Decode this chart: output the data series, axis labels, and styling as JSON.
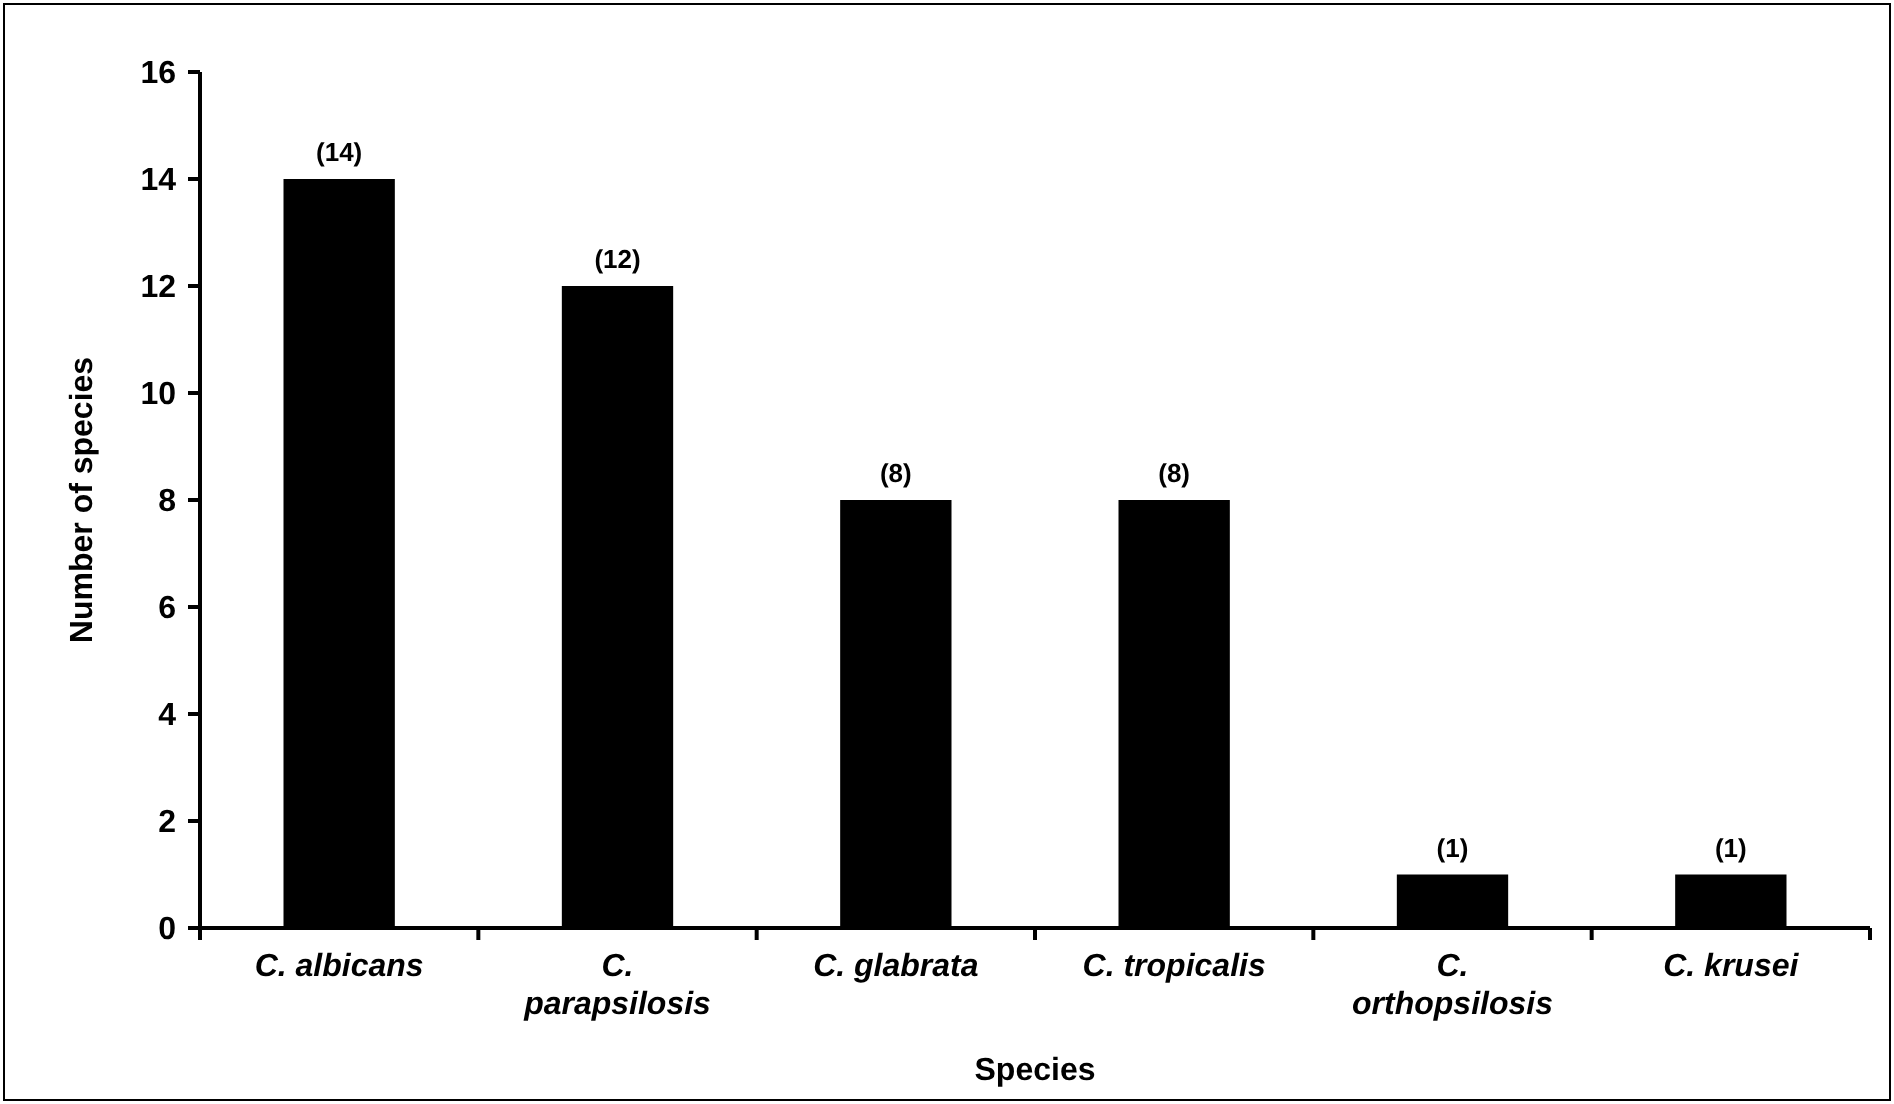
{
  "chart_data": {
    "type": "bar",
    "categories": [
      "C. albicans",
      "C. parapsilosis",
      "C. glabrata",
      "C. tropicalis",
      "C. orthopsilosis",
      "C. krusei"
    ],
    "values": [
      14,
      12,
      8,
      8,
      1,
      1
    ],
    "value_labels": [
      "(14)",
      "(12)",
      "(8)",
      "(8)",
      "(1)",
      "(1)"
    ],
    "color": "#000000",
    "xlabel": "Species",
    "ylabel": "Number of species",
    "ylim": [
      0,
      16
    ],
    "yticks": [
      0,
      2,
      4,
      6,
      8,
      10,
      12,
      14,
      16
    ],
    "grid": false
  }
}
